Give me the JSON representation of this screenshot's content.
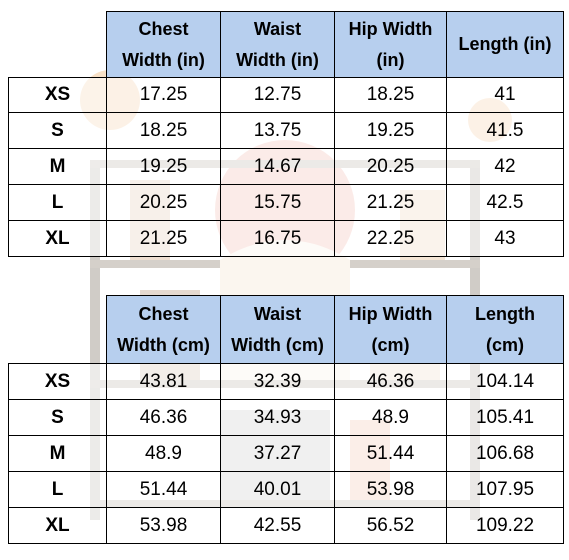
{
  "tables": [
    {
      "headers": [
        [
          "Chest",
          "Width (in)"
        ],
        [
          "Waist",
          "Width (in)"
        ],
        [
          "Hip Width",
          "(in)"
        ],
        [
          "",
          "Length (in)"
        ]
      ],
      "rows": [
        {
          "size": "XS",
          "values": [
            "17.25",
            "12.75",
            "18.25",
            "41"
          ]
        },
        {
          "size": "S",
          "values": [
            "18.25",
            "13.75",
            "19.25",
            "41.5"
          ]
        },
        {
          "size": "M",
          "values": [
            "19.25",
            "14.67",
            "20.25",
            "42"
          ]
        },
        {
          "size": "L",
          "values": [
            "20.25",
            "15.75",
            "21.25",
            "42.5"
          ]
        },
        {
          "size": "XL",
          "values": [
            "21.25",
            "16.75",
            "22.25",
            "43"
          ]
        }
      ]
    },
    {
      "headers": [
        [
          "Chest",
          "Width (cm)"
        ],
        [
          "Waist",
          "Width (cm)"
        ],
        [
          "Hip Width",
          "(cm)"
        ],
        [
          "Length",
          "(cm)"
        ]
      ],
      "rows": [
        {
          "size": "XS",
          "values": [
            "43.81",
            "32.39",
            "46.36",
            "104.14"
          ]
        },
        {
          "size": "S",
          "values": [
            "46.36",
            "34.93",
            "48.9",
            "105.41"
          ]
        },
        {
          "size": "M",
          "values": [
            "48.9",
            "37.27",
            "51.44",
            "106.68"
          ]
        },
        {
          "size": "L",
          "values": [
            "51.44",
            "40.01",
            "53.98",
            "107.95"
          ]
        },
        {
          "size": "XL",
          "values": [
            "53.98",
            "42.55",
            "56.52",
            "109.22"
          ]
        }
      ]
    }
  ],
  "colors": {
    "header_fill": "#b7cfee",
    "border": "#000000"
  },
  "background_illustration": "faded-shelf-scene-image"
}
